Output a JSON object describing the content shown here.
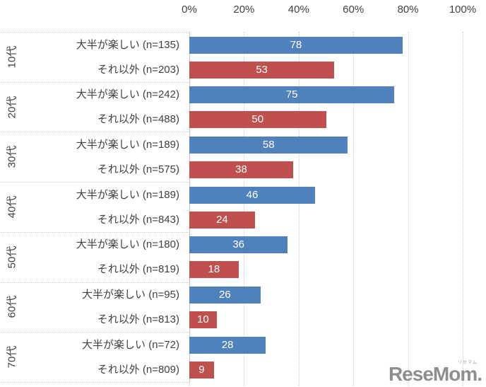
{
  "chart_data": {
    "type": "bar",
    "orientation": "horizontal",
    "value_unit": "%",
    "xlim": [
      0,
      100
    ],
    "gridlines": true,
    "legend": "none",
    "x_ticks": [
      {
        "label": "0%",
        "value": 0
      },
      {
        "label": "20%",
        "value": 20
      },
      {
        "label": "40%",
        "value": 40
      },
      {
        "label": "60%",
        "value": 60
      },
      {
        "label": "80%",
        "value": 80
      },
      {
        "label": "100%",
        "value": 100
      }
    ],
    "series_names": [
      "大半が楽しい",
      "それ以外"
    ],
    "series_colors": [
      "#4F81BD",
      "#C0504D"
    ],
    "groups": [
      {
        "age": "10代",
        "rows": [
          {
            "label": "大半が楽しい (n=135)",
            "n": 135,
            "value": 78
          },
          {
            "label": "それ以外 (n=203)",
            "n": 203,
            "value": 53
          }
        ]
      },
      {
        "age": "20代",
        "rows": [
          {
            "label": "大半が楽しい (n=242)",
            "n": 242,
            "value": 75
          },
          {
            "label": "それ以外 (n=488)",
            "n": 488,
            "value": 50
          }
        ]
      },
      {
        "age": "30代",
        "rows": [
          {
            "label": "大半が楽しい (n=189)",
            "n": 189,
            "value": 58
          },
          {
            "label": "それ以外 (n=575)",
            "n": 575,
            "value": 38
          }
        ]
      },
      {
        "age": "40代",
        "rows": [
          {
            "label": "大半が楽しい (n=189)",
            "n": 189,
            "value": 46
          },
          {
            "label": "それ以外 (n=843)",
            "n": 843,
            "value": 24
          }
        ]
      },
      {
        "age": "50代",
        "rows": [
          {
            "label": "大半が楽しい (n=180)",
            "n": 180,
            "value": 36
          },
          {
            "label": "それ以外 (n=819)",
            "n": 819,
            "value": 18
          }
        ]
      },
      {
        "age": "60代",
        "rows": [
          {
            "label": "大半が楽しい (n=95)",
            "n": 95,
            "value": 26
          },
          {
            "label": "それ以外 (n=813)",
            "n": 813,
            "value": 10
          }
        ]
      },
      {
        "age": "70代",
        "rows": [
          {
            "label": "大半が楽しい (n=72)",
            "n": 72,
            "value": 28
          },
          {
            "label": "それ以外 (n=809)",
            "n": 809,
            "value": 9
          }
        ]
      }
    ]
  },
  "watermark": {
    "text": "ReseMom.",
    "ruby": "リセマム"
  }
}
